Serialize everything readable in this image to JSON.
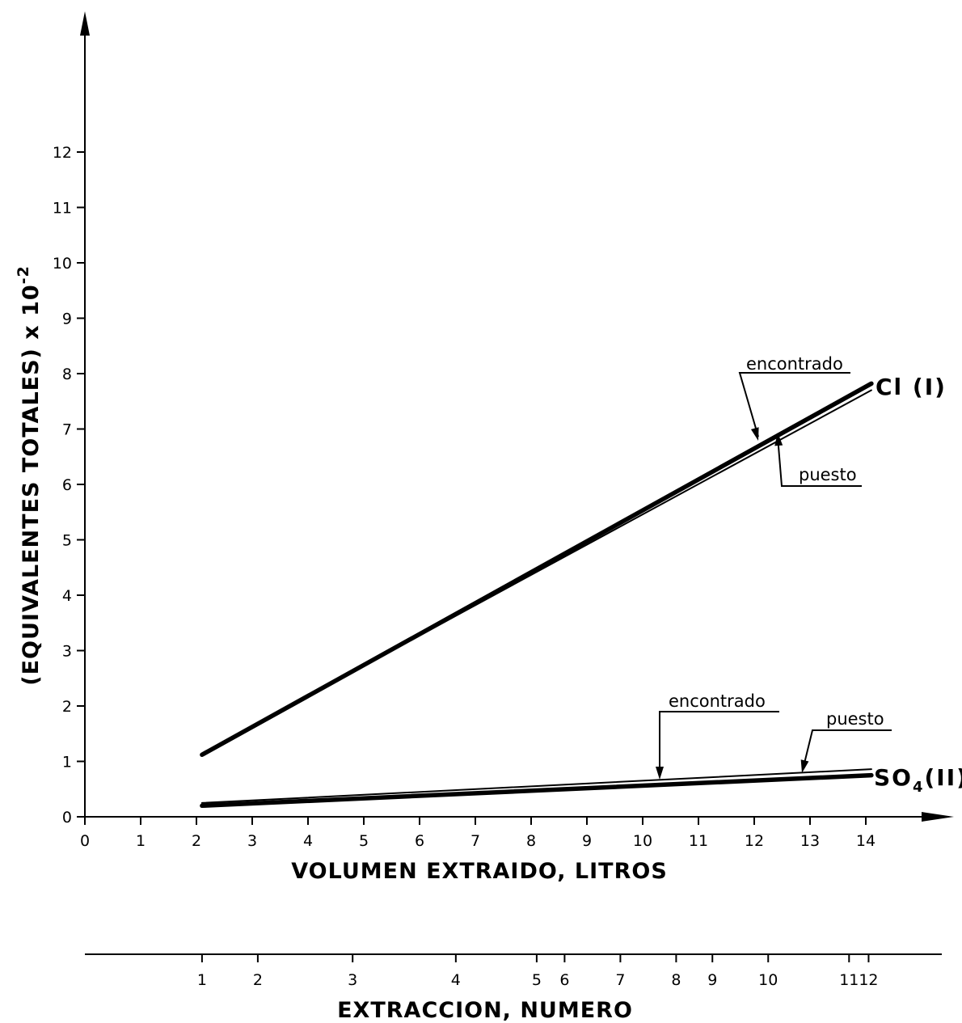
{
  "chart_data": {
    "type": "line",
    "title": "",
    "xlabel": "VOLUMEN EXTRAIDO, LITROS",
    "ylabel": "(EQUIVALENTES  TOTALES) x 10",
    "ylabel_exponent": "-2",
    "xlim": [
      0,
      14
    ],
    "ylim": [
      0,
      12
    ],
    "x_ticks": [
      "0",
      "1",
      "2",
      "3",
      "4",
      "5",
      "6",
      "7",
      "8",
      "9",
      "10",
      "11",
      "12",
      "13",
      "14"
    ],
    "y_ticks": [
      "0",
      "1",
      "2",
      "3",
      "4",
      "5",
      "6",
      "7",
      "8",
      "9",
      "10",
      "11",
      "12"
    ],
    "series": [
      {
        "name": "Cl (I) encontrado",
        "x": [
          2.1,
          14.1
        ],
        "y": [
          1.12,
          7.82
        ]
      },
      {
        "name": "Cl (I) puesto",
        "x": [
          2.1,
          14.1
        ],
        "y": [
          1.14,
          7.7
        ]
      },
      {
        "name": "SO4(II) encontrado",
        "x": [
          2.1,
          14.1
        ],
        "y": [
          0.2,
          0.75
        ]
      },
      {
        "name": "SO4(II) puesto",
        "x": [
          2.1,
          14.1
        ],
        "y": [
          0.25,
          0.86
        ]
      }
    ],
    "series_labels": {
      "cl": "Cl (I)",
      "so4_main": "SO",
      "so4_sub": "4",
      "so4_suffix": "(II)"
    },
    "annotations": {
      "cl_encontrado": "encontrado",
      "cl_puesto": "puesto",
      "so4_encontrado": "encontrado",
      "so4_puesto": "puesto"
    },
    "secondary_axis": {
      "label": "EXTRACCION, NUMERO",
      "ticks": [
        {
          "label": "1",
          "volume": 2.1
        },
        {
          "label": "2",
          "volume": 3.1
        },
        {
          "label": "3",
          "volume": 4.8
        },
        {
          "label": "4",
          "volume": 6.65
        },
        {
          "label": "5",
          "volume": 8.1
        },
        {
          "label": "6",
          "volume": 8.6
        },
        {
          "label": "7",
          "volume": 9.6
        },
        {
          "label": "8",
          "volume": 10.6
        },
        {
          "label": "9",
          "volume": 11.25
        },
        {
          "label": "10",
          "volume": 12.25
        },
        {
          "label": "11",
          "volume": 13.7
        },
        {
          "label": "12",
          "volume": 14.05
        }
      ]
    },
    "grid": false,
    "legend": "none"
  }
}
